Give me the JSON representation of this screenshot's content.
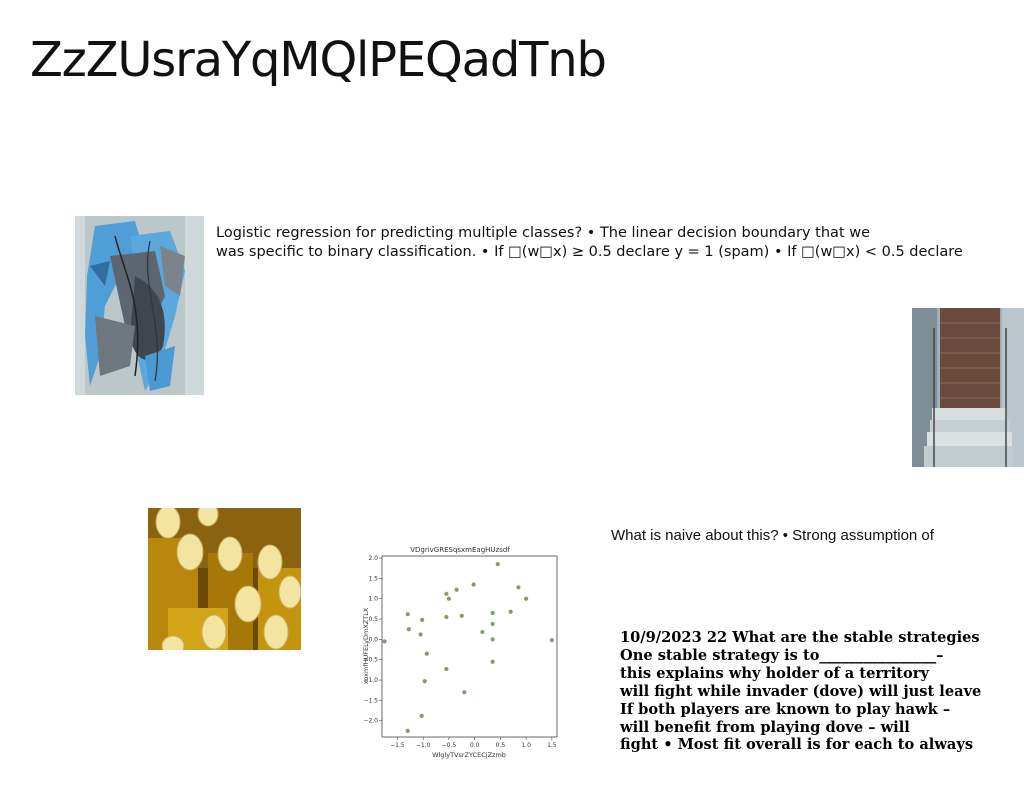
{
  "slide": {
    "title": "ZzZUsraYqMQlPEQadTnb",
    "paragraph1": [
      "Logistic regression for predicting multiple classes? • The linear decision boundary that we",
      "was specific to binary classification. • If □(w□x) ≥ 0.5 declare y = 1 (spam) • If □(w□x) < 0.5 declare"
    ],
    "paragraph2": "What is naive about this? • Strong assumption of",
    "paragraph3": [
      "10/9/2023 22 What are the stable strategies",
      "One stable strategy is to________________–",
      "this explains why holder of a territory",
      "will fight while invader (dove) will just leave",
      "If both players are known to play hawk –",
      "will benefit from playing dove – will",
      "fight • Most fit overall is for each to always"
    ]
  },
  "images": {
    "abstract_painting": "blue-grey abstract painting",
    "building_door": "building doorway with stairs",
    "lemons": "yellow lemon-shaped objects on gold blocks"
  },
  "chart_data": {
    "type": "scatter",
    "title": "VDgrivGRESqsxmEagHUzsdf",
    "xlabel": "WlglyTVsrZYCECjZzmb",
    "ylabel": "xoxmfHUFELyDmXZTLX",
    "xlim": [
      -1.8,
      1.6
    ],
    "ylim": [
      -2.4,
      2.05
    ],
    "xticks": [
      -1.5,
      -1.0,
      -0.5,
      0.0,
      0.5,
      1.0,
      1.5
    ],
    "xtick_labels": [
      "−1.5",
      "−1.0",
      "−0.5",
      "0.0",
      "0.5",
      "1.0",
      "1.5"
    ],
    "yticks": [
      2.0,
      1.5,
      1.0,
      0.5,
      0.0,
      -0.5,
      -1.0,
      -1.5,
      -2.0
    ],
    "ytick_labels": [
      "2.0",
      "1.5",
      "1.0",
      "0.5",
      "0.0",
      "−0.5",
      "−1.0",
      "−1.5",
      "−2.0"
    ],
    "grid": false,
    "point_color": "#7f9e6a",
    "points": [
      [
        -1.75,
        -0.05
      ],
      [
        -1.3,
        0.62
      ],
      [
        -1.28,
        0.25
      ],
      [
        -1.3,
        -2.25
      ],
      [
        -1.02,
        0.48
      ],
      [
        -1.05,
        0.12
      ],
      [
        -0.93,
        -0.35
      ],
      [
        -0.97,
        -1.03
      ],
      [
        -1.03,
        -1.88
      ],
      [
        -0.55,
        1.12
      ],
      [
        -0.5,
        1.0
      ],
      [
        -0.55,
        0.55
      ],
      [
        -0.55,
        -0.73
      ],
      [
        -0.35,
        1.22
      ],
      [
        -0.25,
        0.58
      ],
      [
        -0.2,
        -1.3
      ],
      [
        -0.02,
        1.35
      ],
      [
        0.15,
        0.18
      ],
      [
        0.35,
        0.65
      ],
      [
        0.35,
        0.38
      ],
      [
        0.35,
        0.0
      ],
      [
        0.35,
        -0.55
      ],
      [
        0.45,
        1.85
      ],
      [
        0.7,
        0.68
      ],
      [
        0.85,
        1.28
      ],
      [
        1.0,
        1.0
      ],
      [
        1.5,
        -0.02
      ]
    ]
  }
}
